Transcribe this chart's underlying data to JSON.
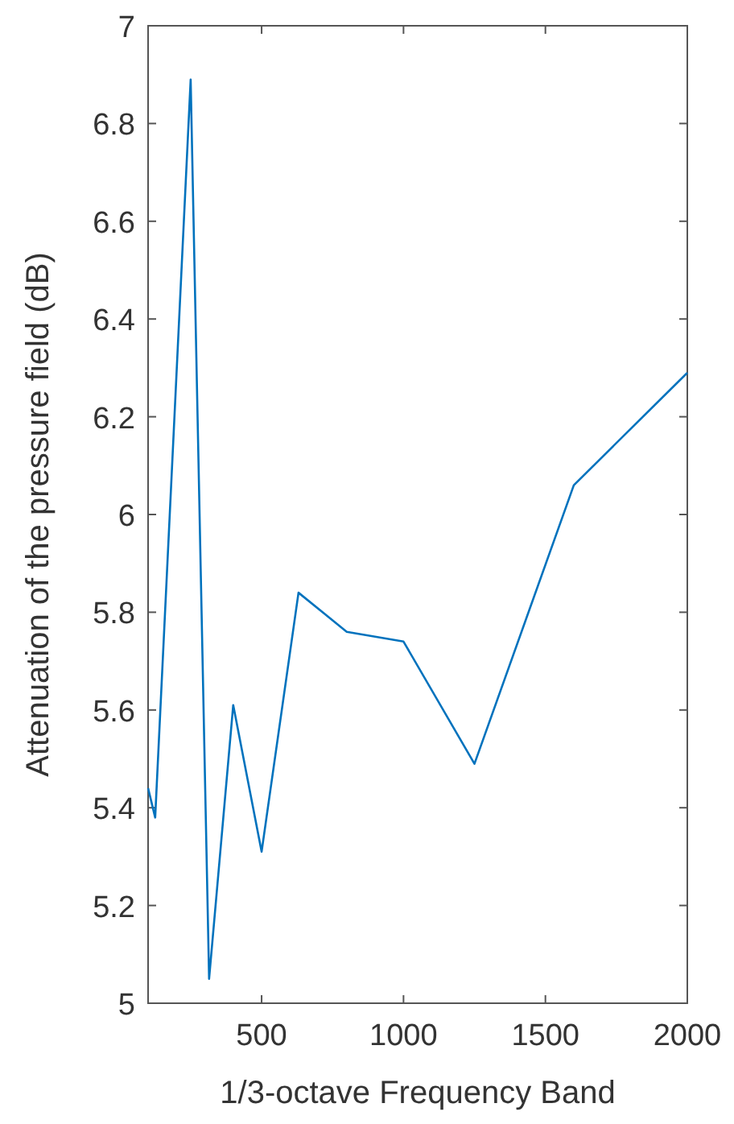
{
  "chart_data": {
    "type": "line",
    "xlabel": "1/3-octave Frequency Band",
    "ylabel": "Attenuation of the pressure field (dB)",
    "x": [
      100,
      125,
      250,
      315,
      400,
      500,
      630,
      800,
      1000,
      1250,
      1600,
      2000
    ],
    "series": [
      {
        "color": "#0072bd",
        "values": [
          5.44,
          5.38,
          6.89,
          5.05,
          5.61,
          5.31,
          5.84,
          5.76,
          5.74,
          5.49,
          6.06,
          6.29
        ]
      }
    ],
    "xlim": [
      100,
      2000
    ],
    "xticks": [
      500,
      1000,
      1500,
      2000
    ],
    "ylim": [
      5,
      7
    ],
    "yticks": [
      5,
      5.2,
      5.4,
      5.6,
      5.8,
      6,
      6.2,
      6.4,
      6.6,
      6.8,
      7
    ],
    "grid": false
  }
}
